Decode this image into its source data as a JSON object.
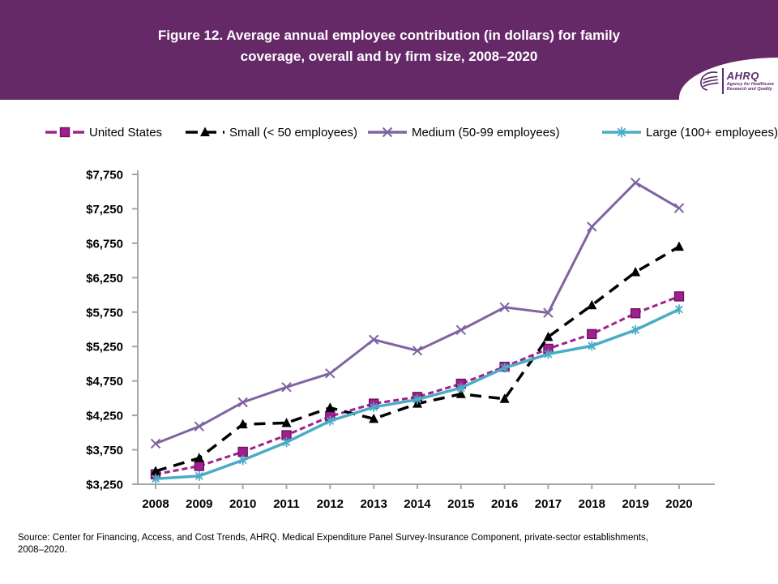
{
  "header": {
    "title_line1": "Figure 12. Average annual employee contribution (in dollars) for family",
    "title_line2": "coverage, overall and by firm size, 2008–2020",
    "bg_color": "#662968",
    "logo": {
      "org": "AHRQ",
      "tagline_line1": "Agency for Healthcare",
      "tagline_line2": "Research and Quality"
    }
  },
  "legend": [
    {
      "label": "United States",
      "color": "#A0208E",
      "marker": "square",
      "line": "dashed-short"
    },
    {
      "label": "Small (< 50 employees)",
      "color": "#000000",
      "marker": "triangle",
      "line": "dashed-long"
    },
    {
      "label": "Medium (50-99 employees)",
      "color": "#8064A2",
      "marker": "x",
      "line": "solid"
    },
    {
      "label": "Large (100+ employees)",
      "color": "#4BACC6",
      "marker": "asterisk",
      "line": "solid"
    }
  ],
  "chart_data": {
    "type": "line",
    "title": "Figure 12. Average annual employee contribution (in dollars) for family coverage, overall and by firm size, 2008–2020",
    "xlabel": "",
    "ylabel": "",
    "x": [
      2008,
      2009,
      2010,
      2011,
      2012,
      2013,
      2014,
      2015,
      2016,
      2017,
      2018,
      2019,
      2020
    ],
    "ylim": [
      3250,
      7750
    ],
    "ytick_step": 500,
    "ytick_prefix": "$",
    "grid": false,
    "legend_position": "top",
    "series": [
      {
        "name": "United States",
        "color": "#A0208E",
        "marker": "square",
        "line": "dashed-short",
        "width": 3,
        "values": [
          3394,
          3515,
          3721,
          3962,
          4236,
          4421,
          4518,
          4710,
          4956,
          5218,
          5431,
          5733,
          5978
        ]
      },
      {
        "name": "Small (< 50 employees)",
        "color": "#000000",
        "marker": "triangle",
        "line": "dashed-long",
        "width": 3.5,
        "values": [
          3440,
          3630,
          4120,
          4140,
          4360,
          4200,
          4420,
          4560,
          4490,
          5390,
          5850,
          6330,
          6700
        ]
      },
      {
        "name": "Medium (50-99 employees)",
        "color": "#8064A2",
        "marker": "x",
        "line": "solid",
        "width": 3,
        "values": [
          3840,
          4090,
          4440,
          4660,
          4860,
          5350,
          5190,
          5490,
          5820,
          5740,
          6990,
          7630,
          7260
        ]
      },
      {
        "name": "Large (100+ employees)",
        "color": "#4BACC6",
        "marker": "asterisk",
        "line": "solid",
        "width": 3.5,
        "values": [
          3330,
          3370,
          3600,
          3860,
          4170,
          4370,
          4480,
          4650,
          4940,
          5140,
          5260,
          5490,
          5790
        ]
      }
    ]
  },
  "source": {
    "line1": "Source: Center for Financing, Access, and Cost Trends, AHRQ. Medical Expenditure Panel Survey-Insurance Component, private-sector establishments,",
    "line2": "2008–2020."
  }
}
